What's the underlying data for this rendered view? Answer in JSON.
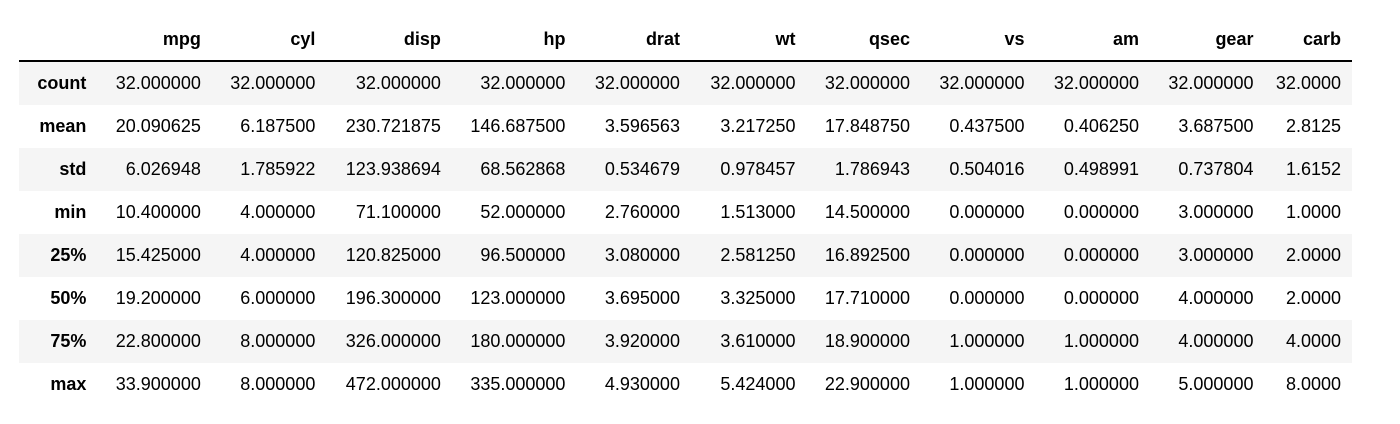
{
  "table": {
    "index_header": "",
    "columns": [
      "mpg",
      "cyl",
      "disp",
      "hp",
      "drat",
      "wt",
      "qsec",
      "vs",
      "am",
      "gear",
      "carb"
    ],
    "rows": [
      {
        "label": "count",
        "values": [
          "32.000000",
          "32.000000",
          "32.000000",
          "32.000000",
          "32.000000",
          "32.000000",
          "32.000000",
          "32.000000",
          "32.000000",
          "32.000000",
          "32.0000"
        ]
      },
      {
        "label": "mean",
        "values": [
          "20.090625",
          "6.187500",
          "230.721875",
          "146.687500",
          "3.596563",
          "3.217250",
          "17.848750",
          "0.437500",
          "0.406250",
          "3.687500",
          "2.8125"
        ]
      },
      {
        "label": "std",
        "values": [
          "6.026948",
          "1.785922",
          "123.938694",
          "68.562868",
          "0.534679",
          "0.978457",
          "1.786943",
          "0.504016",
          "0.498991",
          "0.737804",
          "1.6152"
        ]
      },
      {
        "label": "min",
        "values": [
          "10.400000",
          "4.000000",
          "71.100000",
          "52.000000",
          "2.760000",
          "1.513000",
          "14.500000",
          "0.000000",
          "0.000000",
          "3.000000",
          "1.0000"
        ]
      },
      {
        "label": "25%",
        "values": [
          "15.425000",
          "4.000000",
          "120.825000",
          "96.500000",
          "3.080000",
          "2.581250",
          "16.892500",
          "0.000000",
          "0.000000",
          "3.000000",
          "2.0000"
        ]
      },
      {
        "label": "50%",
        "values": [
          "19.200000",
          "6.000000",
          "196.300000",
          "123.000000",
          "3.695000",
          "3.325000",
          "17.710000",
          "0.000000",
          "0.000000",
          "4.000000",
          "2.0000"
        ]
      },
      {
        "label": "75%",
        "values": [
          "22.800000",
          "8.000000",
          "326.000000",
          "180.000000",
          "3.920000",
          "3.610000",
          "18.900000",
          "1.000000",
          "1.000000",
          "4.000000",
          "4.0000"
        ]
      },
      {
        "label": "max",
        "values": [
          "33.900000",
          "8.000000",
          "472.000000",
          "335.000000",
          "4.930000",
          "5.424000",
          "22.900000",
          "1.000000",
          "1.000000",
          "5.000000",
          "8.0000"
        ]
      }
    ]
  },
  "colors": {
    "stripe": "#f5f5f5",
    "background": "#ffffff",
    "rule": "#000000"
  }
}
